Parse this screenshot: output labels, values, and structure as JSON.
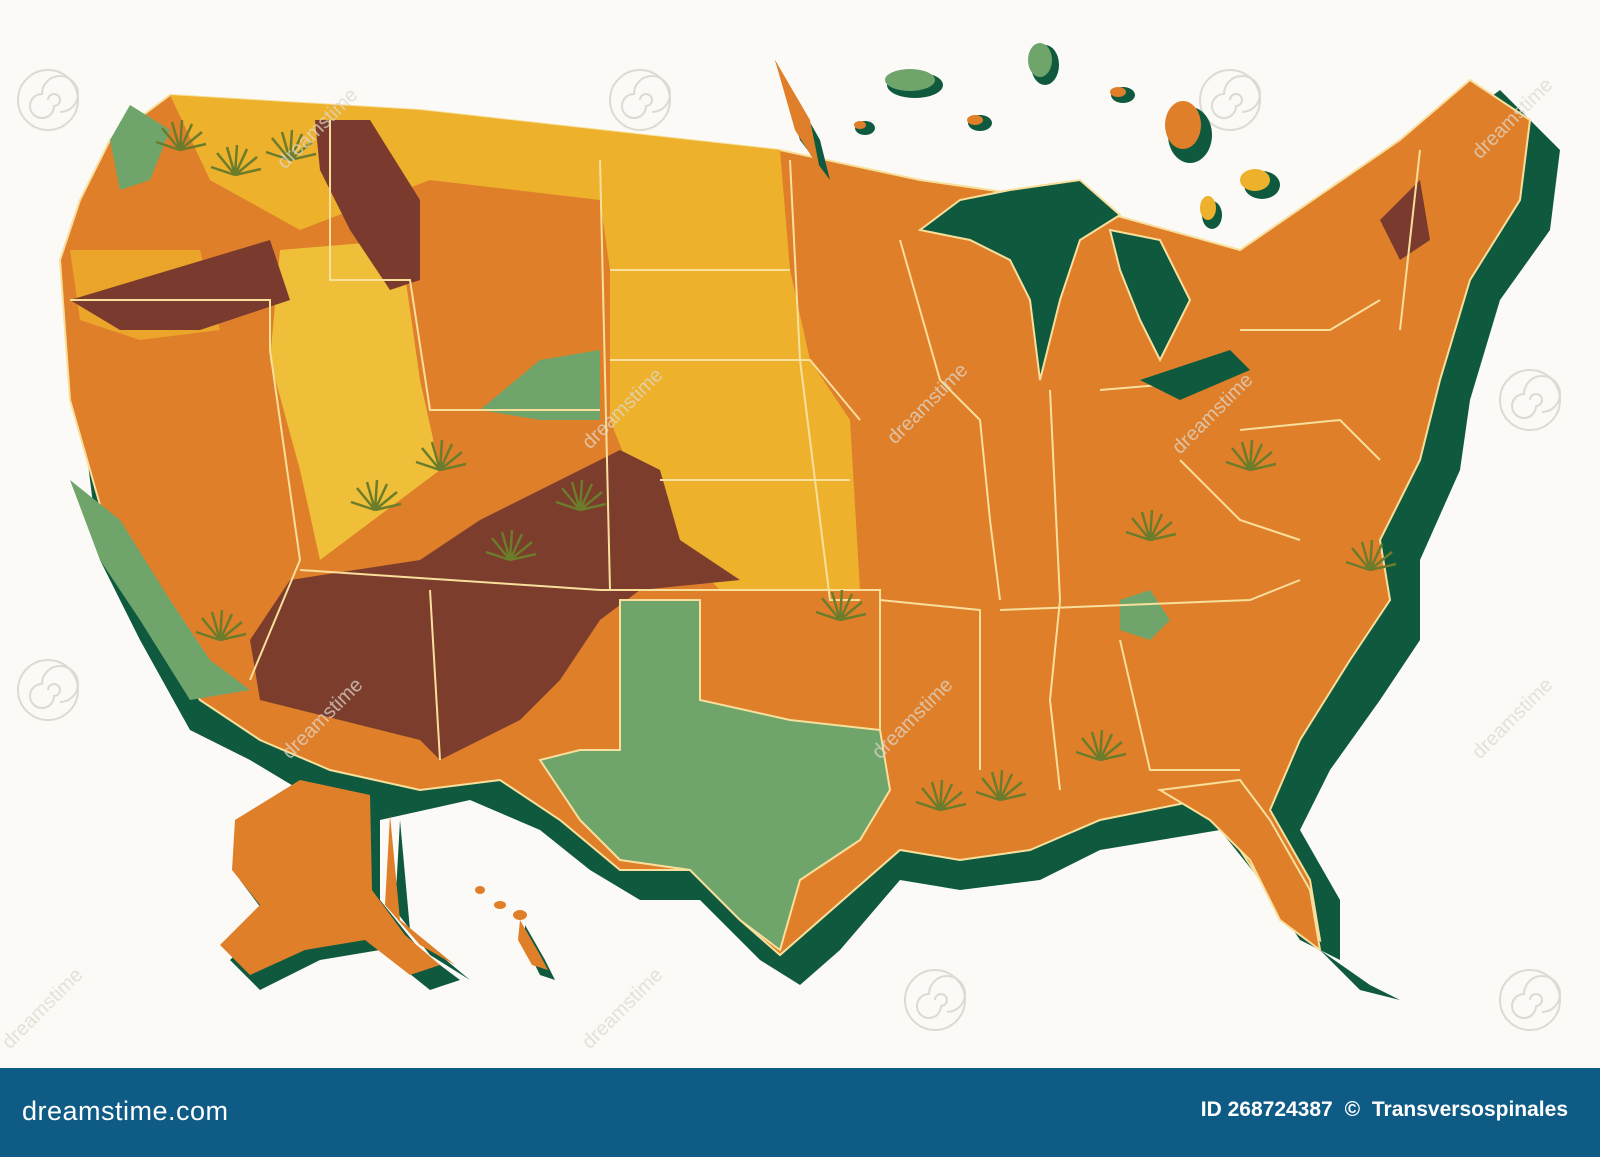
{
  "footer": {
    "brand": "dreamstime.com",
    "id_label": "ID 268724387",
    "copyright_symbol": "©",
    "author": "Transversospinales"
  },
  "watermark": {
    "text": "dreamstime"
  },
  "colors": {
    "background": "#fbfaf6",
    "footer": "#0e5b86",
    "shadow": "#0f5a3f",
    "orange": "#e07f2a",
    "dark_orange": "#cc6a22",
    "yellow": "#edb12c",
    "green": "#6fa46a",
    "brown": "#7a3b2e",
    "border": "#f8df9c"
  },
  "icons": [
    "spiral-watermark-icon",
    "grass-tuft-icon"
  ]
}
